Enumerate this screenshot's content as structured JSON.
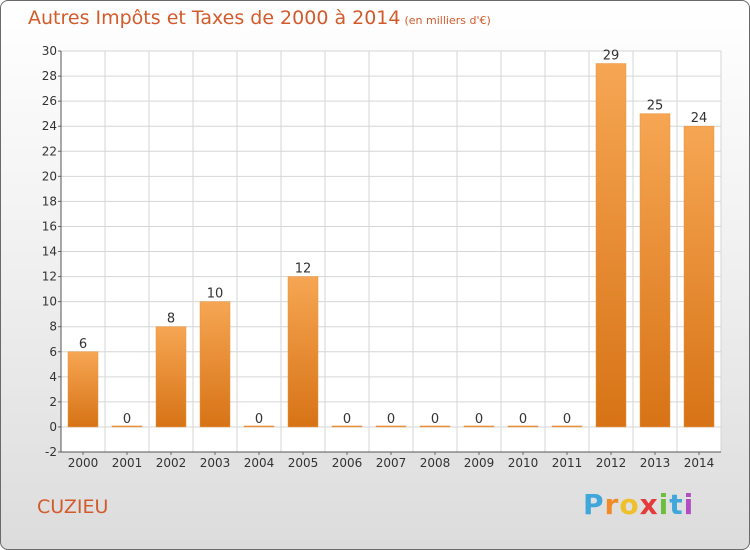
{
  "title": "Autres Impôts et Taxes de 2000 à 2014",
  "subtitle": "(en milliers d'€)",
  "location": "CUZIEU",
  "logo": {
    "text": "Proxiti",
    "letters": [
      "P",
      "r",
      "o",
      "x",
      "i",
      "t",
      "i"
    ],
    "colors": [
      "#3fa7da",
      "#f08b28",
      "#f0c02a",
      "#e53a3a",
      "#6cbf3c",
      "#3fa7da",
      "#b34cc4"
    ]
  },
  "colors": {
    "bar_light": "#f6a653",
    "bar_dark": "#d77316",
    "title": "#d35b2b"
  },
  "chart_data": {
    "type": "bar",
    "categories": [
      "2000",
      "2001",
      "2002",
      "2003",
      "2004",
      "2005",
      "2006",
      "2007",
      "2008",
      "2009",
      "2010",
      "2011",
      "2012",
      "2013",
      "2014"
    ],
    "values": [
      6,
      0,
      8,
      10,
      0,
      12,
      0,
      0,
      0,
      0,
      0,
      0,
      29,
      25,
      24
    ],
    "title": "Autres Impôts et Taxes de 2000 à 2014",
    "ylim": [
      -2,
      30
    ],
    "yticks": [
      -2,
      0,
      2,
      4,
      6,
      8,
      10,
      12,
      14,
      16,
      18,
      20,
      22,
      24,
      26,
      28,
      30
    ],
    "grid": true,
    "data_labels": true
  }
}
